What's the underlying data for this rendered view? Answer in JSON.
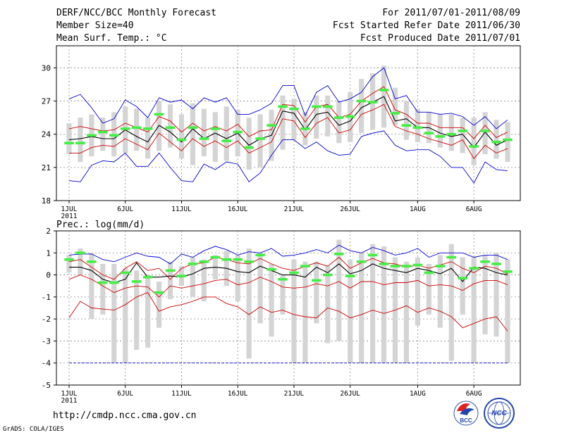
{
  "header": {
    "left": [
      "DERF/NCC/BCC Monthly Forecast",
      "Member Size=40",
      "Mean Surf. Temp.: °C"
    ],
    "right": [
      "For 2011/07/01-2011/08/09",
      "Fcst Started Refer Date 2011/06/30",
      "Fcst Produced Date 2011/07/01"
    ]
  },
  "footer": {
    "url": "http://cmdp.ncc.cma.gov.cn",
    "grads": "GrADS: COLA/IGES"
  },
  "logos": {
    "bcc_text": "BCC",
    "ncc_text": "NCC"
  },
  "colors": {
    "blue": "#0000cc",
    "red": "#cc0000",
    "black": "#000000",
    "green": "#44ee44",
    "bar": "#d4d4d4",
    "grid": "#888888"
  },
  "chart_data": [
    {
      "type": "line",
      "title": "Mean Surf. Temp.: °C",
      "ylabel": "",
      "ylim": [
        18,
        32
      ],
      "yticks": [
        18,
        21,
        24,
        27,
        30
      ],
      "x_tick_positions": [
        1,
        6,
        11,
        16,
        21,
        26,
        32,
        37
      ],
      "x_tick_labels": [
        "1JUL",
        "6JUL",
        "11JUL",
        "16JUL",
        "21JUL",
        "26JUL",
        "1AUG",
        "6AUG"
      ],
      "x_sub_label": "2011",
      "days": 40,
      "bars_low": [
        22.2,
        21.5,
        22.0,
        22.5,
        22.0,
        22.3,
        22.5,
        21.8,
        22.5,
        22.8,
        21.8,
        21.2,
        22.0,
        21.5,
        21.6,
        22.0,
        20.8,
        21.0,
        21.6,
        22.6,
        23.5,
        23.0,
        23.6,
        23.8,
        23.2,
        23.3,
        24.1,
        24.4,
        24.6,
        24.8,
        23.5,
        23.3,
        23.2,
        22.8,
        22.5,
        22.3,
        21.2,
        22.2,
        21.8,
        21.5
      ],
      "bars_high": [
        25.0,
        25.5,
        25.8,
        25.5,
        26.0,
        26.5,
        26.3,
        25.5,
        27.0,
        26.7,
        25.8,
        26.8,
        26.3,
        26.0,
        26.5,
        26.2,
        25.5,
        25.8,
        26.2,
        27.5,
        27.2,
        26.0,
        27.5,
        27.5,
        27.0,
        27.8,
        29.0,
        29.5,
        30.2,
        28.2,
        27.0,
        26.3,
        26.0,
        25.8,
        25.8,
        25.5,
        25.5,
        26.0,
        25.3,
        25.1
      ],
      "green": [
        23.2,
        23.2,
        23.9,
        24.2,
        23.9,
        24.5,
        24.6,
        24.5,
        25.8,
        24.6,
        23.5,
        24.6,
        23.6,
        24.5,
        23.4,
        24.2,
        22.8,
        23.6,
        24.8,
        26.5,
        26.3,
        24.5,
        26.5,
        26.5,
        25.5,
        25.6,
        27.0,
        26.9,
        28.0,
        25.9,
        24.8,
        24.6,
        24.1,
        23.8,
        24.0,
        24.3,
        22.9,
        24.3,
        23.3,
        23.5
      ],
      "series": [
        {
          "name": "max",
          "color": "#0000cc",
          "values": [
            27.2,
            27.6,
            26.4,
            25.0,
            25.4,
            27.1,
            26.5,
            25.5,
            27.3,
            26.9,
            27.1,
            26.3,
            27.3,
            26.9,
            27.3,
            25.8,
            25.8,
            26.2,
            26.8,
            28.4,
            28.4,
            25.7,
            27.8,
            28.4,
            26.9,
            27.2,
            27.8,
            29.2,
            30.0,
            27.2,
            27.5,
            26.0,
            26.0,
            25.8,
            25.9,
            25.6,
            24.8,
            25.6,
            24.5,
            25.3
          ]
        },
        {
          "name": "upper",
          "color": "#cc0000",
          "values": [
            24.5,
            24.7,
            24.5,
            24.3,
            24.4,
            25.0,
            24.6,
            24.2,
            25.6,
            25.2,
            24.2,
            25.0,
            24.3,
            24.7,
            24.3,
            24.9,
            23.8,
            24.3,
            24.4,
            26.7,
            26.6,
            25.1,
            26.5,
            26.7,
            25.5,
            25.8,
            27.0,
            27.7,
            28.3,
            26.2,
            25.8,
            25.0,
            25.0,
            24.6,
            24.6,
            24.6,
            23.6,
            24.8,
            23.7,
            24.2
          ]
        },
        {
          "name": "mean",
          "color": "#000000",
          "values": [
            23.5,
            23.6,
            23.8,
            23.6,
            23.6,
            24.4,
            23.8,
            23.3,
            24.8,
            24.2,
            23.3,
            24.5,
            23.6,
            24.1,
            23.6,
            24.1,
            23.0,
            23.6,
            23.9,
            26.1,
            25.9,
            24.4,
            25.8,
            26.0,
            24.8,
            25.2,
            26.4,
            26.9,
            27.4,
            25.2,
            25.4,
            24.6,
            24.6,
            24.1,
            23.8,
            24.0,
            22.8,
            24.2,
            23.0,
            23.5
          ]
        },
        {
          "name": "lower",
          "color": "#cc0000",
          "values": [
            22.3,
            22.3,
            22.8,
            23.0,
            22.9,
            23.6,
            23.1,
            22.6,
            24.1,
            23.3,
            22.5,
            23.6,
            22.9,
            23.4,
            22.8,
            23.4,
            22.3,
            22.8,
            23.3,
            25.4,
            25.2,
            23.7,
            25.0,
            25.5,
            24.1,
            24.4,
            25.8,
            26.2,
            26.7,
            24.7,
            24.3,
            24.0,
            23.6,
            23.3,
            23.0,
            23.5,
            21.8,
            23.0,
            22.3,
            22.7
          ]
        },
        {
          "name": "min",
          "color": "#0000cc",
          "values": [
            19.8,
            19.7,
            21.2,
            21.6,
            21.5,
            22.3,
            21.1,
            21.1,
            22.3,
            21.0,
            19.8,
            19.7,
            21.3,
            20.8,
            21.5,
            21.3,
            19.7,
            20.5,
            22.1,
            23.5,
            23.5,
            22.7,
            23.3,
            22.5,
            22.1,
            22.2,
            23.8,
            24.1,
            24.3,
            23.0,
            22.5,
            22.6,
            22.6,
            22.0,
            21.0,
            21.0,
            19.6,
            21.5,
            20.8,
            20.7
          ]
        }
      ]
    },
    {
      "type": "line",
      "title": "Prec.: log(mm/d)",
      "ylabel": "",
      "ylim": [
        -5,
        2
      ],
      "yticks": [
        -5,
        -4,
        -3,
        -2,
        -1,
        0,
        1,
        2
      ],
      "x_tick_positions": [
        1,
        6,
        11,
        16,
        21,
        26,
        32,
        37
      ],
      "x_tick_labels": [
        "1JUL",
        "6JUL",
        "11JUL",
        "16JUL",
        "21JUL",
        "26JUL",
        "1AUG",
        "6AUG"
      ],
      "x_sub_label": "2011",
      "days": 40,
      "bars_low": [
        0.1,
        0.0,
        -2.0,
        -1.8,
        -4.0,
        -4.0,
        -3.4,
        -3.3,
        -2.4,
        -1.1,
        -0.5,
        -1.0,
        -1.2,
        -0.2,
        -0.5,
        -1.2,
        -3.8,
        -2.2,
        -2.8,
        -1.8,
        -4.0,
        -4.0,
        -2.2,
        -3.1,
        -3.0,
        -4.0,
        -4.0,
        -4.0,
        -4.0,
        -4.0,
        -4.0,
        -2.3,
        -1.8,
        -2.4,
        -3.9,
        -1.8,
        -4.0,
        -2.7,
        -2.8,
        -4.0
      ],
      "bars_high": [
        0.9,
        1.2,
        1.0,
        0.5,
        0.5,
        0.3,
        0.2,
        0.0,
        -0.3,
        0.6,
        0.4,
        0.8,
        0.7,
        0.9,
        1.1,
        0.9,
        1.2,
        1.0,
        0.5,
        0.0,
        0.7,
        0.6,
        0.6,
        0.4,
        1.6,
        0.7,
        1.0,
        1.4,
        1.3,
        0.8,
        0.6,
        0.8,
        0.5,
        0.9,
        1.4,
        0.8,
        0.8,
        0.9,
        1.0,
        0.7
      ],
      "green": [
        0.7,
        1.0,
        0.6,
        -0.35,
        -0.35,
        0.1,
        -0.3,
        -0.1,
        -0.8,
        0.2,
        -0.05,
        0.5,
        0.6,
        0.8,
        0.7,
        0.7,
        0.6,
        0.9,
        0.25,
        -0.2,
        0.1,
        0.4,
        -0.25,
        0.0,
        0.95,
        -0.05,
        0.6,
        0.9,
        0.5,
        0.4,
        0.4,
        0.45,
        0.1,
        0.4,
        0.8,
        -0.15,
        0.3,
        0.6,
        0.5,
        0.15
      ],
      "series": [
        {
          "name": "max",
          "color": "#0000cc",
          "values": [
            0.9,
            0.95,
            0.95,
            0.7,
            0.6,
            0.8,
            1.0,
            0.85,
            0.8,
            0.5,
            0.95,
            0.8,
            1.1,
            1.3,
            1.15,
            0.9,
            1.05,
            1.0,
            1.2,
            0.85,
            0.9,
            1.0,
            1.15,
            1.0,
            1.35,
            1.1,
            1.0,
            1.25,
            1.1,
            0.9,
            1.0,
            1.2,
            0.8,
            1.0,
            1.0,
            1.0,
            0.8,
            0.9,
            0.9,
            0.7
          ]
        },
        {
          "name": "upper",
          "color": "#cc0000",
          "values": [
            0.6,
            0.7,
            0.35,
            0.0,
            -0.2,
            0.3,
            0.6,
            0.2,
            0.3,
            -0.2,
            0.3,
            0.5,
            0.55,
            0.8,
            0.7,
            0.55,
            0.5,
            0.75,
            0.5,
            0.3,
            0.2,
            0.4,
            0.55,
            0.4,
            0.8,
            0.3,
            0.55,
            0.75,
            0.55,
            0.5,
            0.35,
            0.45,
            0.3,
            0.45,
            0.6,
            0.3,
            0.1,
            0.4,
            0.3,
            0.05
          ]
        },
        {
          "name": "mean",
          "color": "#000000",
          "values": [
            0.35,
            0.35,
            0.2,
            -0.2,
            -0.35,
            -0.2,
            0.55,
            -0.1,
            -0.1,
            -0.05,
            -0.1,
            0.05,
            0.3,
            0.35,
            0.3,
            0.15,
            0.1,
            0.4,
            0.2,
            0.0,
            0.0,
            -0.1,
            0.35,
            0.1,
            0.5,
            0.05,
            0.2,
            0.5,
            0.3,
            0.2,
            0.1,
            0.3,
            0.2,
            0.05,
            0.3,
            -0.3,
            0.35,
            0.3,
            0.1,
            0.0
          ]
        },
        {
          "name": "lower",
          "color": "#cc0000",
          "values": [
            -0.2,
            0.0,
            -0.2,
            -0.5,
            -0.8,
            -0.6,
            -0.5,
            -0.55,
            -1.0,
            -0.5,
            -0.6,
            -0.5,
            -0.4,
            -0.25,
            -0.2,
            -0.45,
            -0.35,
            -0.1,
            -0.3,
            -0.55,
            -0.6,
            -0.55,
            -0.4,
            -0.5,
            -0.3,
            -0.6,
            -0.3,
            -0.3,
            -0.45,
            -0.35,
            -0.35,
            -0.25,
            -0.5,
            -0.45,
            -0.5,
            -0.7,
            -0.4,
            -0.25,
            -0.25,
            -0.45
          ]
        },
        {
          "name": "min",
          "color": "#cc0000",
          "values": [
            -1.95,
            -1.2,
            -1.5,
            -1.55,
            -1.6,
            -1.35,
            -1.0,
            -0.8,
            -1.65,
            -1.45,
            -1.35,
            -1.2,
            -1.0,
            -1.0,
            -1.3,
            -1.45,
            -1.8,
            -1.45,
            -1.7,
            -1.6,
            -1.8,
            -1.9,
            -1.95,
            -1.5,
            -1.65,
            -1.95,
            -1.8,
            -1.6,
            -1.75,
            -1.6,
            -1.4,
            -1.7,
            -1.5,
            -1.65,
            -1.9,
            -2.4,
            -2.2,
            -2.0,
            -1.9,
            -2.55
          ]
        },
        {
          "name": "floor",
          "color": "#0000cc",
          "values": [
            -4.0,
            -4.0,
            -4.0,
            -4.0,
            -4.0,
            -4.0,
            -4.0,
            -4.0,
            -4.0,
            -4.0,
            -4.0,
            -4.0,
            -4.0,
            -4.0,
            -4.0,
            -4.0,
            -4.0,
            -4.0,
            -4.0,
            -4.0,
            -4.0,
            -4.0,
            -4.0,
            -4.0,
            -4.0,
            -4.0,
            -4.0,
            -4.0,
            -4.0,
            -4.0,
            -4.0,
            -4.0,
            -4.0,
            -4.0,
            -4.0,
            -4.0,
            -4.0,
            -4.0,
            -4.0,
            -4.0
          ]
        }
      ]
    }
  ]
}
